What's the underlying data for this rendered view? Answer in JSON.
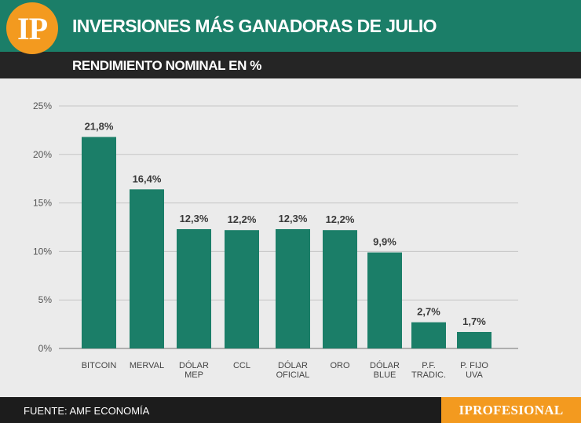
{
  "header": {
    "logo_text": "IP",
    "title": "INVERSIONES MÁS GANADORAS DE JULIO",
    "subtitle": "RENDIMIENTO NOMINAL EN %"
  },
  "footer": {
    "source": "FUENTE: AMF ECONOMÍA",
    "brand": "IPROFESIONAL"
  },
  "colors": {
    "bar": "#1b7e68",
    "header": "#1b7e68",
    "accent": "#f39a1f"
  },
  "chart_data": {
    "type": "bar",
    "categories": [
      [
        "BITCOIN"
      ],
      [
        "MERVAL"
      ],
      [
        "DÓLAR",
        "MEP"
      ],
      [
        "CCL"
      ],
      [
        "DÓLAR",
        "OFICIAL"
      ],
      [
        "ORO"
      ],
      [
        "DÓLAR",
        "BLUE"
      ],
      [
        "P.F.",
        "TRADIC."
      ],
      [
        "P. FIJO",
        "UVA"
      ]
    ],
    "values": [
      21.8,
      16.4,
      12.3,
      12.2,
      12.3,
      12.2,
      9.9,
      2.7,
      1.7
    ],
    "data_labels": [
      "21,8%",
      "16,4%",
      "12,3%",
      "12,2%",
      "12,3%",
      "12,2%",
      "9,9%",
      "2,7%",
      "1,7%"
    ],
    "y_ticks": [
      0,
      5,
      10,
      15,
      20,
      25
    ],
    "y_tick_labels": [
      "0%",
      "5%",
      "10%",
      "15%",
      "20%",
      "25%"
    ],
    "ylim": [
      0,
      25
    ],
    "grid": true,
    "legend": "none"
  }
}
